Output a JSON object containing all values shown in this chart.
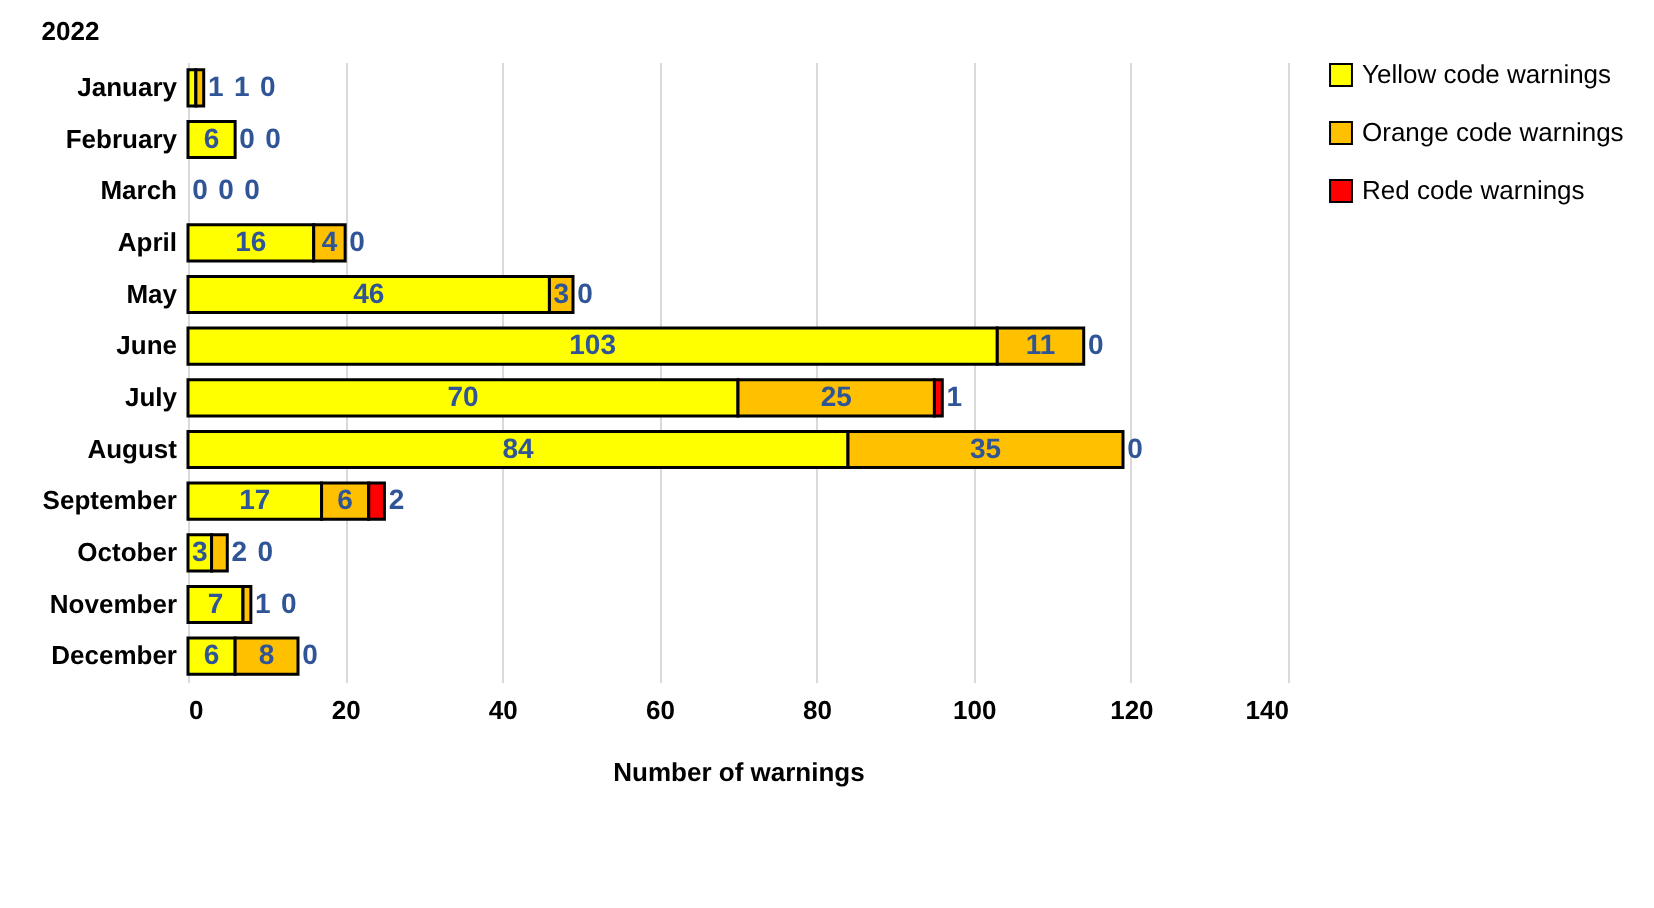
{
  "chart_data": {
    "type": "bar",
    "orientation": "horizontal",
    "stacked": true,
    "title": "2022",
    "xlabel": "Number of warnings",
    "categories": [
      "January",
      "February",
      "March",
      "April",
      "May",
      "June",
      "July",
      "August",
      "September",
      "October",
      "November",
      "December"
    ],
    "series": [
      {
        "name": "Yellow code warnings",
        "color": "#ffff00",
        "values": [
          1,
          6,
          0,
          16,
          46,
          103,
          70,
          84,
          17,
          3,
          7,
          6
        ]
      },
      {
        "name": "Orange code warnings",
        "color": "#ffc000",
        "values": [
          1,
          0,
          0,
          4,
          3,
          11,
          25,
          35,
          6,
          2,
          1,
          8
        ]
      },
      {
        "name": "Red code warnings",
        "color": "#ff0000",
        "values": [
          0,
          0,
          0,
          0,
          0,
          0,
          1,
          0,
          2,
          0,
          0,
          0
        ]
      }
    ],
    "xlim": [
      0,
      140
    ],
    "xticks": [
      0,
      20,
      40,
      60,
      80,
      100,
      120,
      140
    ],
    "grid": "x",
    "legend": "right",
    "data_labels": true
  }
}
